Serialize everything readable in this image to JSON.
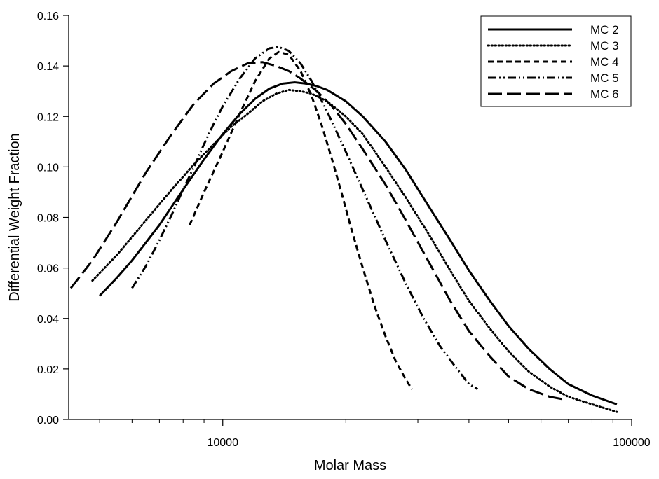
{
  "chart_data": {
    "type": "line",
    "title": "",
    "xlabel": "Molar Mass",
    "ylabel": "Differential Weight Fraction",
    "xscale": "log",
    "xlim": [
      4200,
      100000
    ],
    "ylim": [
      0,
      0.16
    ],
    "x_ticks": [
      10000,
      100000
    ],
    "x_tick_labels": [
      "10000",
      "100000"
    ],
    "y_ticks": [
      0,
      0.02,
      0.04,
      0.06,
      0.08,
      0.1,
      0.12,
      0.14,
      0.16
    ],
    "y_tick_labels": [
      "0.00",
      "0.02",
      "0.04",
      "0.06",
      "0.08",
      "0.10",
      "0.12",
      "0.14",
      "0.16"
    ],
    "grid": false,
    "legend": {
      "position": "top-right"
    },
    "series": [
      {
        "name": "MC 2",
        "dash": "solid",
        "points": [
          [
            5000,
            0.049
          ],
          [
            5500,
            0.056
          ],
          [
            6000,
            0.063
          ],
          [
            7000,
            0.077
          ],
          [
            8000,
            0.091
          ],
          [
            9000,
            0.103
          ],
          [
            10000,
            0.113
          ],
          [
            11000,
            0.121
          ],
          [
            12000,
            0.127
          ],
          [
            13000,
            0.131
          ],
          [
            14000,
            0.133
          ],
          [
            15000,
            0.1335
          ],
          [
            16000,
            0.133
          ],
          [
            17000,
            0.132
          ],
          [
            18000,
            0.1305
          ],
          [
            20000,
            0.126
          ],
          [
            22000,
            0.12
          ],
          [
            25000,
            0.11
          ],
          [
            28000,
            0.099
          ],
          [
            32000,
            0.084
          ],
          [
            36000,
            0.071
          ],
          [
            40000,
            0.059
          ],
          [
            45000,
            0.047
          ],
          [
            50000,
            0.037
          ],
          [
            56000,
            0.028
          ],
          [
            63000,
            0.02
          ],
          [
            70000,
            0.014
          ],
          [
            80000,
            0.0095
          ],
          [
            92000,
            0.006
          ]
        ]
      },
      {
        "name": "MC 3",
        "dash": "dotted",
        "points": [
          [
            4800,
            0.055
          ],
          [
            5500,
            0.065
          ],
          [
            6500,
            0.079
          ],
          [
            7500,
            0.091
          ],
          [
            8500,
            0.101
          ],
          [
            9500,
            0.109
          ],
          [
            10500,
            0.116
          ],
          [
            11500,
            0.121
          ],
          [
            12500,
            0.126
          ],
          [
            13500,
            0.129
          ],
          [
            14500,
            0.1305
          ],
          [
            15500,
            0.13
          ],
          [
            16500,
            0.129
          ],
          [
            18000,
            0.126
          ],
          [
            20000,
            0.12
          ],
          [
            22000,
            0.113
          ],
          [
            25000,
            0.1
          ],
          [
            28000,
            0.088
          ],
          [
            32000,
            0.073
          ],
          [
            36000,
            0.059
          ],
          [
            40000,
            0.047
          ],
          [
            45000,
            0.036
          ],
          [
            50000,
            0.027
          ],
          [
            56000,
            0.019
          ],
          [
            63000,
            0.013
          ],
          [
            70000,
            0.009
          ],
          [
            80000,
            0.006
          ],
          [
            92000,
            0.003
          ]
        ]
      },
      {
        "name": "MC 4",
        "dash": "dashed",
        "points": [
          [
            8300,
            0.077
          ],
          [
            9000,
            0.09
          ],
          [
            10000,
            0.106
          ],
          [
            11000,
            0.121
          ],
          [
            12000,
            0.134
          ],
          [
            13000,
            0.143
          ],
          [
            13700,
            0.1455
          ],
          [
            14500,
            0.1445
          ],
          [
            15500,
            0.138
          ],
          [
            16500,
            0.128
          ],
          [
            17500,
            0.116
          ],
          [
            18500,
            0.103
          ],
          [
            19500,
            0.09
          ],
          [
            20500,
            0.077
          ],
          [
            22000,
            0.06
          ],
          [
            23500,
            0.045
          ],
          [
            25000,
            0.033
          ],
          [
            26500,
            0.023
          ],
          [
            28000,
            0.016
          ],
          [
            29000,
            0.012
          ]
        ]
      },
      {
        "name": "MC 5",
        "dash": "dash-dot-dot",
        "points": [
          [
            6000,
            0.052
          ],
          [
            6500,
            0.061
          ],
          [
            7000,
            0.071
          ],
          [
            7500,
            0.081
          ],
          [
            8000,
            0.091
          ],
          [
            8500,
            0.1
          ],
          [
            9000,
            0.109
          ],
          [
            9500,
            0.117
          ],
          [
            10000,
            0.124
          ],
          [
            11000,
            0.135
          ],
          [
            12000,
            0.143
          ],
          [
            13000,
            0.147
          ],
          [
            13700,
            0.1475
          ],
          [
            14500,
            0.146
          ],
          [
            15500,
            0.141
          ],
          [
            16500,
            0.134
          ],
          [
            18000,
            0.122
          ],
          [
            20000,
            0.106
          ],
          [
            22000,
            0.091
          ],
          [
            25000,
            0.071
          ],
          [
            28000,
            0.054
          ],
          [
            31000,
            0.04
          ],
          [
            34000,
            0.029
          ],
          [
            37000,
            0.021
          ],
          [
            40000,
            0.014
          ],
          [
            42000,
            0.012
          ]
        ]
      },
      {
        "name": "MC 6",
        "dash": "long-dash",
        "points": [
          [
            4250,
            0.052
          ],
          [
            4800,
            0.063
          ],
          [
            5500,
            0.078
          ],
          [
            6500,
            0.098
          ],
          [
            7500,
            0.113
          ],
          [
            8500,
            0.125
          ],
          [
            9500,
            0.133
          ],
          [
            10500,
            0.138
          ],
          [
            11500,
            0.141
          ],
          [
            12500,
            0.1415
          ],
          [
            13500,
            0.14
          ],
          [
            14500,
            0.138
          ],
          [
            15500,
            0.135
          ],
          [
            17000,
            0.13
          ],
          [
            18500,
            0.124
          ],
          [
            20000,
            0.117
          ],
          [
            22000,
            0.107
          ],
          [
            25000,
            0.093
          ],
          [
            28000,
            0.079
          ],
          [
            32000,
            0.062
          ],
          [
            36000,
            0.047
          ],
          [
            40000,
            0.035
          ],
          [
            45000,
            0.025
          ],
          [
            50000,
            0.017
          ],
          [
            56000,
            0.012
          ],
          [
            63000,
            0.009
          ],
          [
            68000,
            0.008
          ]
        ]
      }
    ]
  }
}
